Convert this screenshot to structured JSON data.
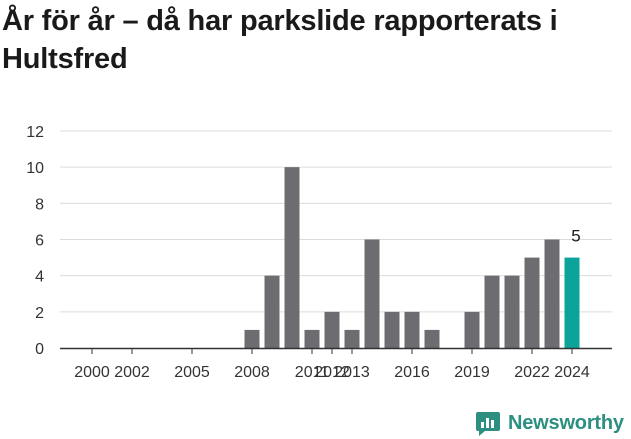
{
  "header": {
    "title": "År för år – då har parkslide rapporterats i Hultsfred"
  },
  "chart_data": {
    "type": "bar",
    "categories": [
      "2000",
      "2001",
      "2002",
      "2003",
      "2004",
      "2005",
      "2006",
      "2007",
      "2008",
      "2009",
      "2010",
      "2011",
      "2012",
      "2013",
      "2014",
      "2015",
      "2016",
      "2017",
      "2018",
      "2019",
      "2020",
      "2021",
      "2022",
      "2023",
      "2024"
    ],
    "x_tick_labels": [
      "2000",
      "2002",
      "2005",
      "2008",
      "2011",
      "2012",
      "2013",
      "2016",
      "2019",
      "2022",
      "2024"
    ],
    "values": [
      0,
      0,
      0,
      0,
      0,
      0,
      0,
      0,
      1,
      4,
      10,
      1,
      2,
      1,
      6,
      2,
      2,
      1,
      0,
      2,
      4,
      4,
      5,
      6,
      5
    ],
    "highlight": {
      "category": "2024",
      "label": "5"
    },
    "ylim": [
      0,
      12
    ],
    "yticks": [
      0,
      2,
      4,
      6,
      8,
      10,
      12
    ],
    "grid": true,
    "xlabel": "",
    "ylabel": "",
    "colors": {
      "bar": "#6d6c71",
      "highlight": "#0ca39a",
      "grid": "#dcdcdc",
      "axis": "#333333"
    }
  },
  "branding": {
    "logo_text": "Newsworthy",
    "logo_icon": "newsworthy-chart-icon",
    "color": "#2c8f80"
  }
}
